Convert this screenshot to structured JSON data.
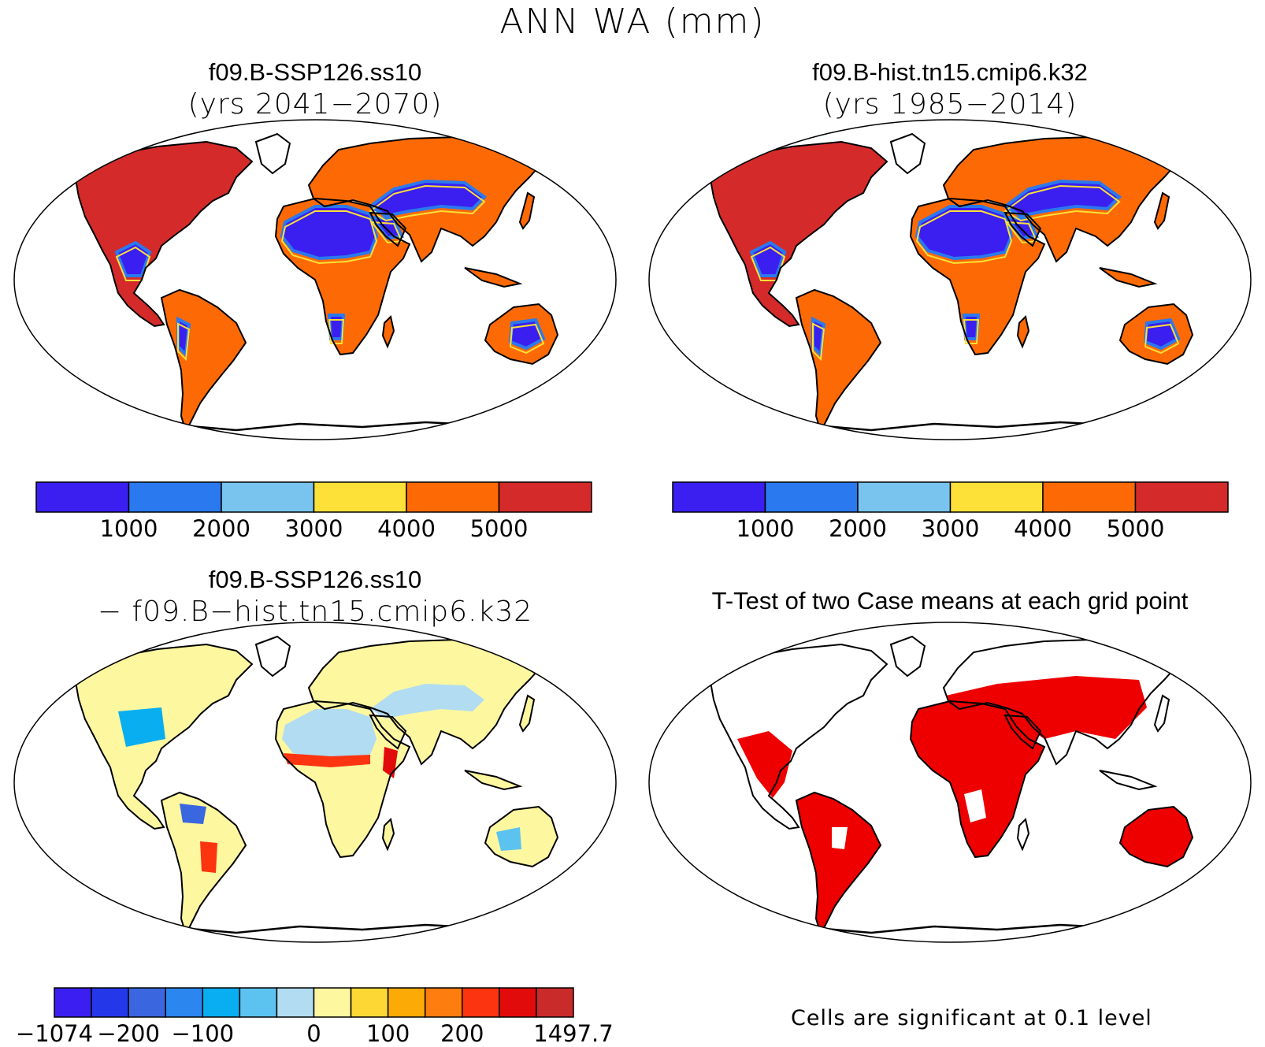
{
  "figure": {
    "title": "ANN WA (mm)"
  },
  "panels": [
    {
      "id": "case1",
      "title": "f09.B-SSP126.ss10",
      "subtitle": "(yrs 2041−2070)",
      "map_type": "absolute"
    },
    {
      "id": "case2",
      "title": "f09.B-hist.tn15.cmip6.k32",
      "subtitle": "(yrs 1985−2014)",
      "map_type": "absolute"
    },
    {
      "id": "diff",
      "title": "f09.B-SSP126.ss10",
      "subtitle": "− f09.B−hist.tn15.cmip6.k32",
      "map_type": "difference"
    },
    {
      "id": "ttest",
      "title": "T-Test of two Case means at each grid point",
      "subtitle": "",
      "map_type": "significance"
    }
  ],
  "colorbars": {
    "absolute": {
      "colors": [
        "#3a1ff0",
        "#2b79ee",
        "#79c4ee",
        "#fde038",
        "#fd6a05",
        "#d42b2a"
      ],
      "labels": [
        "1000",
        "2000",
        "3000",
        "4000",
        "5000"
      ]
    },
    "difference": {
      "colors": [
        "#3a1ff0",
        "#2438ea",
        "#3a67e0",
        "#2b86f0",
        "#09aef0",
        "#5cc3f0",
        "#b1dcf2",
        "#fdf7a0",
        "#fdd835",
        "#fcaa05",
        "#fd7d0e",
        "#fd3410",
        "#e20b0b",
        "#c92a2a"
      ],
      "labels": [
        "−1074",
        "−200",
        "−100",
        "0",
        "100",
        "200",
        "1497.7"
      ],
      "label_boundaries": [
        0,
        2,
        4,
        7,
        9,
        11,
        14
      ]
    }
  },
  "significance_note": "Cells are significant at 0.1 level",
  "map_colors": {
    "ocean": "#ffffff",
    "coast": "#000000",
    "land_abs": "#fd6a05",
    "north_america_abs": "#d42b2a",
    "desert_abs": "#3a1ff0",
    "land_diff": "#fdf7a0",
    "desert_diff": "#b1dcf2",
    "significant": "#ee0000"
  }
}
